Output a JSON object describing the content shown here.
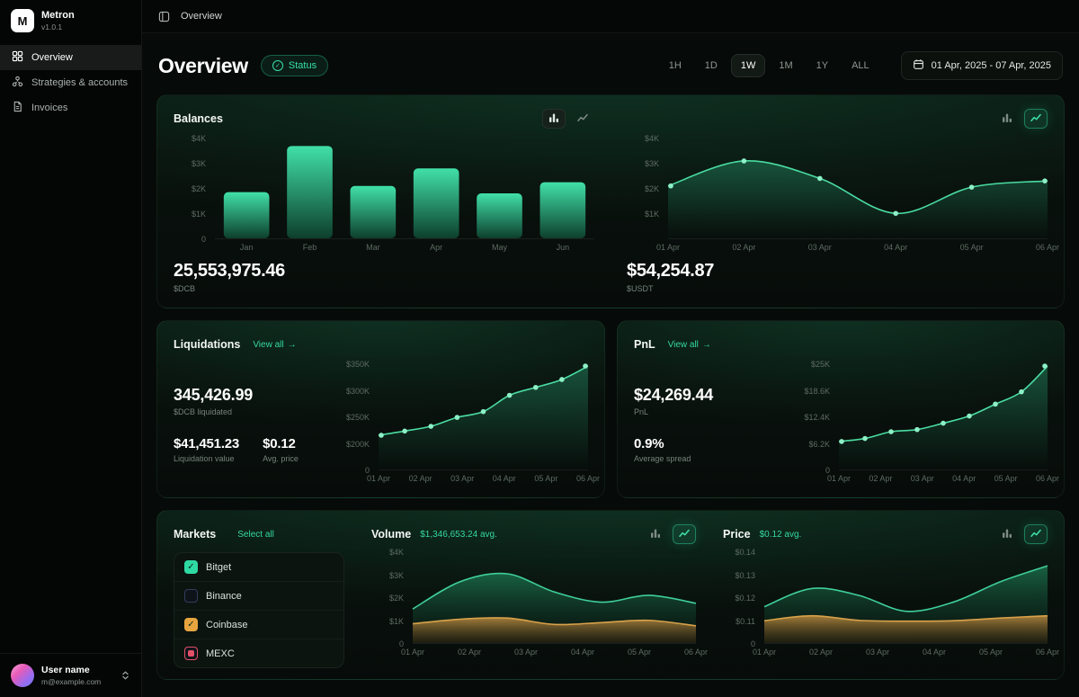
{
  "app": {
    "name": "Metron",
    "version": "v1.0.1"
  },
  "topbar": {
    "breadcrumb": "Overview"
  },
  "icons": {
    "logo_glyph": "M",
    "arrow_right": "→",
    "check": "✓"
  },
  "sidebar": {
    "items": [
      {
        "label": "Overview"
      },
      {
        "label": "Strategies & accounts"
      },
      {
        "label": "Invoices"
      }
    ],
    "user": {
      "name": "User name",
      "email": "m@example.com"
    }
  },
  "header": {
    "title": "Overview",
    "status": "Status",
    "ranges": [
      "1H",
      "1D",
      "1W",
      "1M",
      "1Y",
      "ALL"
    ],
    "active_range": "1W",
    "date_range": "01 Apr, 2025 - 07 Apr, 2025"
  },
  "colors": {
    "accent": "#38e0a6",
    "orange": "#d9a24a",
    "muted": "#76837b"
  },
  "balances": {
    "title": "Balances",
    "total_dcb": "25,553,975.46",
    "unit_dcb": "$DCB",
    "total_usdt": "$54,254.87",
    "unit_usdt": "$USDT",
    "bar_chart": {
      "type": "bar",
      "x_labels": [
        "Jan",
        "Feb",
        "Mar",
        "Apr",
        "May",
        "Jun"
      ],
      "y_ticks": [
        {
          "label": "0",
          "v": 0
        },
        {
          "label": "$1K",
          "v": 1000
        },
        {
          "label": "$2K",
          "v": 2000
        },
        {
          "label": "$3K",
          "v": 3000
        },
        {
          "label": "$4K",
          "v": 4000
        }
      ],
      "series": [
        {
          "name": "balance",
          "values": [
            1850,
            3700,
            2100,
            2800,
            1800,
            2250
          ],
          "color": "#36d89e",
          "fill_from": "#41e0a9",
          "fill_to": "#0d3f2d"
        }
      ]
    },
    "line_chart": {
      "type": "area",
      "x_labels": [
        "01 Apr",
        "02 Apr",
        "03 Apr",
        "04 Apr",
        "05 Apr",
        "06 Apr"
      ],
      "y_ticks": [
        {
          "label": "",
          "v": 0
        },
        {
          "label": "$1K",
          "v": 1000
        },
        {
          "label": "$2K",
          "v": 2000
        },
        {
          "label": "$3K",
          "v": 3000
        },
        {
          "label": "$4K",
          "v": 4000
        }
      ],
      "series": [
        {
          "name": "usdt",
          "values": [
            2100,
            3100,
            2400,
            1000,
            2050,
            2300
          ],
          "dots": true,
          "color": "#4adca2",
          "dot_color": "#8df0c6",
          "fill_from": "rgba(52,211,153,0.30)",
          "fill_to": "rgba(52,211,153,0)"
        }
      ]
    }
  },
  "liquidations": {
    "title": "Liquidations",
    "view_all": "View all",
    "stat_main": "345,426.99",
    "stat_main_label": "$DCB liquidated",
    "stat_value": "$41,451.23",
    "stat_value_label": "Liquidation value",
    "stat_price": "$0.12",
    "stat_price_label": "Avg. price",
    "chart": {
      "type": "area",
      "x_labels": [
        "01 Apr",
        "02 Apr",
        "03 Apr",
        "04 Apr",
        "05 Apr",
        "06 Apr"
      ],
      "y_ticks": [
        {
          "label": "0",
          "v": 0
        },
        {
          "label": "$200K",
          "v": 200000
        },
        {
          "label": "$250K",
          "v": 250000
        },
        {
          "label": "$300K",
          "v": 300000
        },
        {
          "label": "$350K",
          "v": 350000
        }
      ],
      "series": [
        {
          "name": "liquidations",
          "values": [
            215000,
            223000,
            232000,
            249000,
            260000,
            291000,
            306000,
            321000,
            350000
          ],
          "dots": true,
          "color": "#4adca2",
          "dot_color": "#8df0c6",
          "fill_from": "rgba(52,211,153,0.30)",
          "fill_to": "rgba(52,211,153,0)"
        }
      ]
    }
  },
  "pnl": {
    "title": "PnL",
    "view_all": "View all",
    "stat_main": "$24,269.44",
    "stat_main_label": "PnL",
    "stat_spread": "0.9%",
    "stat_spread_label": "Average spread",
    "chart": {
      "type": "area",
      "x_labels": [
        "01 Apr",
        "02 Apr",
        "03 Apr",
        "04 Apr",
        "05 Apr",
        "06 Apr"
      ],
      "y_ticks": [
        {
          "label": "0",
          "v": 0
        },
        {
          "label": "$6.2K",
          "v": 6200
        },
        {
          "label": "$12.4K",
          "v": 12400
        },
        {
          "label": "$18.6K",
          "v": 18600
        },
        {
          "label": "$25K",
          "v": 25000
        }
      ],
      "series": [
        {
          "name": "pnl",
          "values": [
            6600,
            7300,
            8900,
            9400,
            10900,
            12600,
            15400,
            18300,
            24800
          ],
          "dots": true,
          "color": "#4adca2",
          "dot_color": "#8df0c6",
          "fill_from": "rgba(52,211,153,0.30)",
          "fill_to": "rgba(52,211,153,0)"
        }
      ]
    }
  },
  "markets": {
    "title": "Markets",
    "select_all": "Select all",
    "items": [
      {
        "label": "Bitget",
        "state": "checked",
        "color": "#2fd9a2"
      },
      {
        "label": "Binance",
        "state": "unchecked",
        "color": "#323c5e"
      },
      {
        "label": "Coinbase",
        "state": "checked",
        "color": "#e8a53f"
      },
      {
        "label": "MEXC",
        "state": "partial",
        "color": "#e25068"
      }
    ]
  },
  "volume": {
    "title": "Volume",
    "avg": "$1,346,653.24 avg.",
    "chart": {
      "type": "area",
      "x_labels": [
        "01 Apr",
        "02 Apr",
        "03 Apr",
        "04 Apr",
        "05 Apr",
        "06 Apr"
      ],
      "y_ticks": [
        {
          "label": "0",
          "v": 0
        },
        {
          "label": "$1K",
          "v": 1000
        },
        {
          "label": "$2K",
          "v": 2000
        },
        {
          "label": "$3K",
          "v": 3000
        },
        {
          "label": "$4K",
          "v": 4000
        }
      ],
      "series": [
        {
          "name": "volume-green",
          "values": [
            1500,
            2700,
            3050,
            2250,
            1800,
            2100,
            1750
          ],
          "color": "#3fcf9a",
          "fill_from": "rgba(38,170,115,0.50)",
          "fill_to": "rgba(20,80,55,0.08)"
        },
        {
          "name": "volume-orange",
          "values": [
            850,
            1050,
            1100,
            820,
            900,
            1000,
            760
          ],
          "color": "#d9a24a",
          "fill_from": "rgba(190,140,64,0.85)",
          "fill_to": "rgba(90,62,25,0.25)"
        }
      ]
    }
  },
  "price": {
    "title": "Price",
    "avg": "$0.12 avg.",
    "chart": {
      "type": "area",
      "x_labels": [
        "01 Apr",
        "02 Apr",
        "03 Apr",
        "04 Apr",
        "05 Apr",
        "06 Apr"
      ],
      "y_ticks": [
        {
          "label": "0",
          "v": 0
        },
        {
          "label": "$0.11",
          "v": 0.11
        },
        {
          "label": "$0.12",
          "v": 0.12
        },
        {
          "label": "$0.13",
          "v": 0.13
        },
        {
          "label": "$0.14",
          "v": 0.14
        }
      ],
      "series": [
        {
          "name": "price-green",
          "values": [
            0.116,
            0.124,
            0.121,
            0.114,
            0.118,
            0.127,
            0.134
          ],
          "color": "#3fcf9a",
          "fill_from": "rgba(38,170,115,0.50)",
          "fill_to": "rgba(20,80,55,0.08)"
        },
        {
          "name": "price-orange",
          "values": [
            0.108,
            0.112,
            0.11,
            0.106,
            0.108,
            0.111,
            0.112
          ],
          "color": "#d9a24a",
          "fill_from": "rgba(190,140,64,0.85)",
          "fill_to": "rgba(90,62,25,0.25)"
        }
      ]
    }
  }
}
